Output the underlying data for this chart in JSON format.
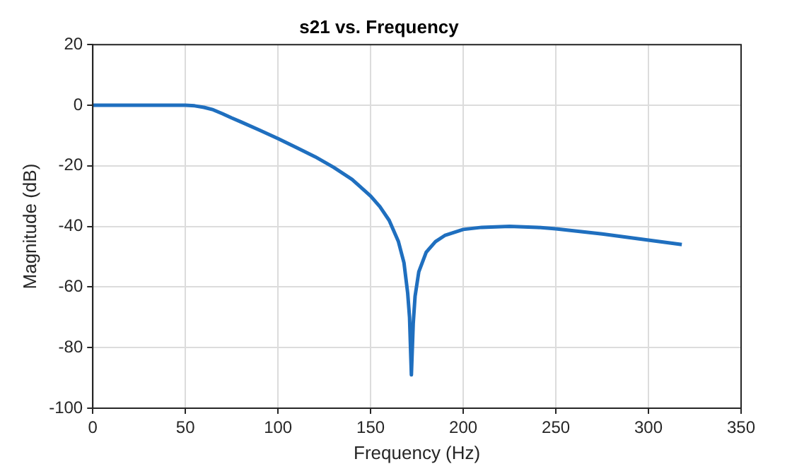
{
  "chart_data": {
    "type": "line",
    "title": "s21 vs. Frequency",
    "xlabel": "Frequency (Hz)",
    "ylabel": "Magnitude (dB)",
    "xlim": [
      0,
      350
    ],
    "xticks": [
      0,
      50,
      100,
      150,
      200,
      250,
      300,
      350
    ],
    "ylim": [
      -100,
      20
    ],
    "yticks": [
      -100,
      -80,
      -60,
      -40,
      -20,
      0,
      20
    ],
    "grid": true,
    "legend": false,
    "marker": "none",
    "line_style": "solid",
    "series": [
      {
        "color": "#1f6fbf",
        "x": [
          0,
          50,
          55,
          60,
          65,
          70,
          75,
          80,
          90,
          100,
          110,
          120,
          130,
          140,
          150,
          155,
          160,
          165,
          168,
          170,
          171,
          172,
          173,
          174,
          176,
          180,
          185,
          190,
          200,
          210,
          225,
          240,
          250,
          275,
          300,
          318
        ],
        "values": [
          0,
          0,
          -0.2,
          -0.7,
          -1.5,
          -2.8,
          -4.2,
          -5.5,
          -8.2,
          -11,
          -14,
          -17,
          -20.5,
          -24.5,
          -30,
          -33.5,
          -38,
          -45,
          -52,
          -62,
          -70,
          -89,
          -72,
          -63,
          -55,
          -48.5,
          -45,
          -43,
          -41,
          -40.3,
          -40,
          -40.3,
          -40.8,
          -42.5,
          -44.5,
          -46
        ]
      }
    ]
  }
}
